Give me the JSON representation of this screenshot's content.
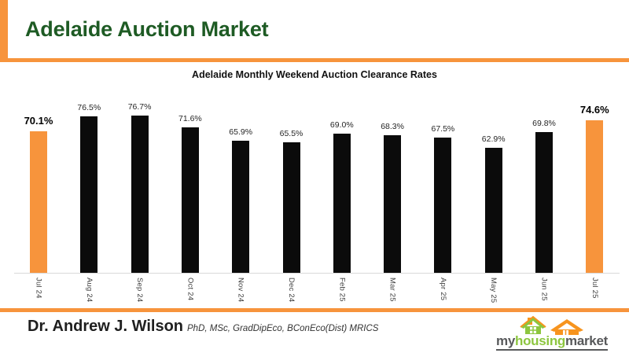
{
  "header": {
    "title": "Adelaide Auction Market"
  },
  "chart_data": {
    "type": "bar",
    "title": "Adelaide Monthly Weekend Auction Clearance Rates",
    "categories": [
      "Jul 24",
      "Aug 24",
      "Sep 24",
      "Oct 24",
      "Nov 24",
      "Dec 24",
      "Feb 25",
      "Mar 25",
      "Apr 25",
      "May 25",
      "Jun 25",
      "Jul 25"
    ],
    "values": [
      70.1,
      76.5,
      76.7,
      71.6,
      65.9,
      65.5,
      69.0,
      68.3,
      67.5,
      62.9,
      69.8,
      74.6
    ],
    "value_labels": [
      "70.1%",
      "76.5%",
      "76.7%",
      "71.6%",
      "65.9%",
      "65.5%",
      "69.0%",
      "68.3%",
      "67.5%",
      "62.9%",
      "69.8%",
      "74.6%"
    ],
    "highlight_indices": [
      0,
      11
    ],
    "xlabel": "",
    "ylabel": "",
    "ylim": [
      10,
      80
    ],
    "grid": false,
    "legend": "none",
    "bar_color": "#0b0b0b",
    "highlight_color": "#F7943C"
  },
  "footer": {
    "author_name": "Dr. Andrew J. Wilson",
    "author_credentials": "PhD, MSc, GradDipEco, BConEco(Dist) MRICS",
    "logo": {
      "part1": "my",
      "part2": "housing",
      "part3": "market"
    }
  },
  "colors": {
    "accent_orange": "#F7943C",
    "title_green": "#1E5B24",
    "logo_green": "#8DC63F",
    "logo_orange": "#F7941E",
    "logo_gray": "#58595B"
  }
}
